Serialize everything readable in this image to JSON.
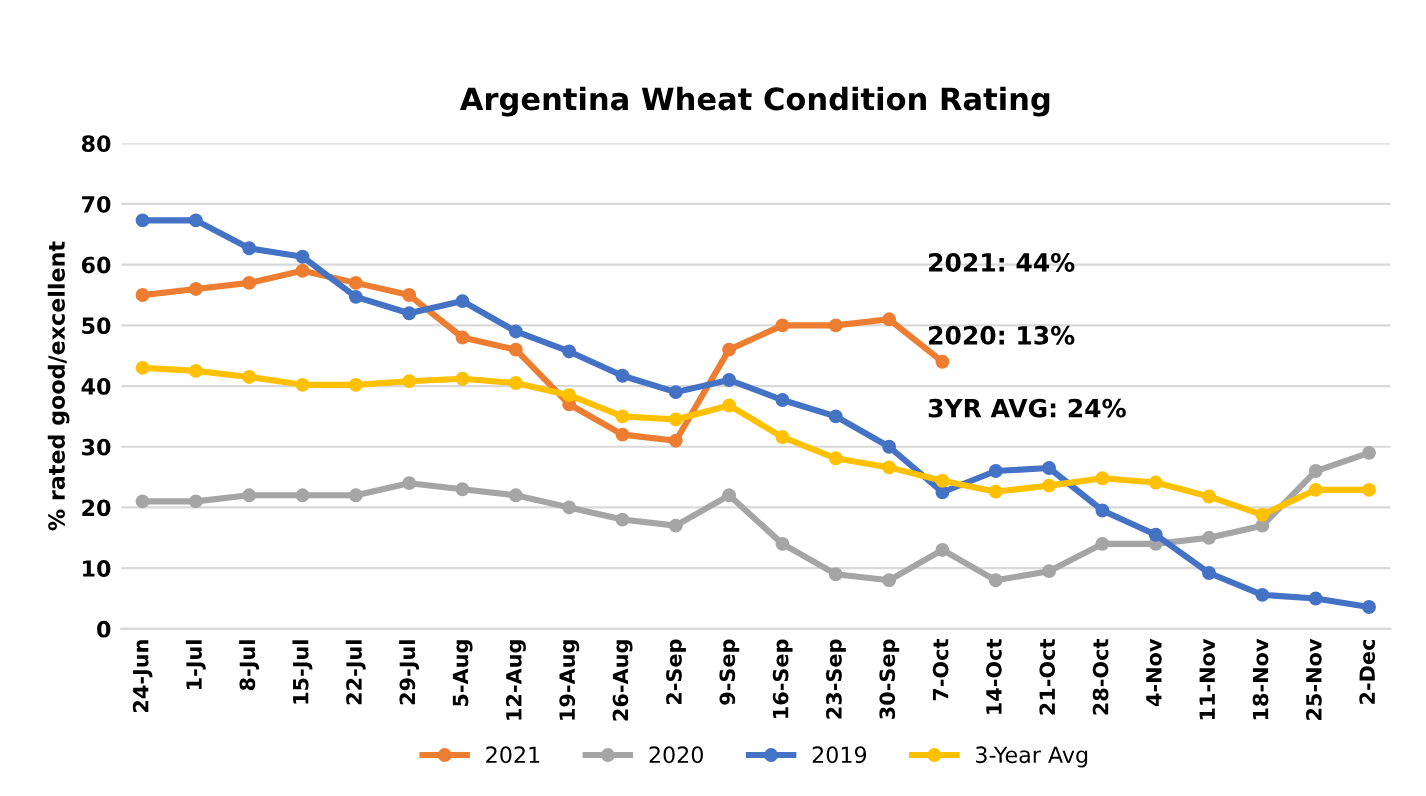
{
  "chart_data": {
    "type": "line",
    "title": "Argentina Wheat Condition Rating",
    "ylabel": "% rated good/excellent",
    "categories": [
      "24-Jun",
      "1-Jul",
      "8-Jul",
      "15-Jul",
      "22-Jul",
      "29-Jul",
      "5-Aug",
      "12-Aug",
      "19-Aug",
      "26-Aug",
      "2-Sep",
      "9-Sep",
      "16-Sep",
      "23-Sep",
      "30-Sep",
      "7-Oct",
      "14-Oct",
      "21-Oct",
      "28-Oct",
      "4-Nov",
      "11-Nov",
      "18-Nov",
      "25-Nov",
      "2-Dec"
    ],
    "series": [
      {
        "name": "2021",
        "color": "#ed7d31",
        "values": [
          55,
          56,
          57,
          59,
          57,
          55,
          48,
          46,
          37,
          32,
          31,
          46,
          50,
          50,
          51,
          44,
          null,
          null,
          null,
          null,
          null,
          null,
          null,
          null
        ]
      },
      {
        "name": "2020",
        "color": "#a5a5a5",
        "values": [
          21,
          21,
          22,
          22,
          22,
          24,
          23,
          22,
          20,
          18,
          17,
          22,
          14,
          9,
          8,
          13,
          8,
          9.5,
          14,
          14,
          15,
          17,
          26,
          29
        ]
      },
      {
        "name": "2019",
        "color": "#4472c4",
        "values": [
          67.3,
          67.3,
          62.7,
          61.3,
          54.7,
          52,
          54,
          49,
          45.7,
          41.7,
          39,
          41,
          37.7,
          35,
          30,
          22.5,
          26,
          26.5,
          19.5,
          15.5,
          9.2,
          5.6,
          5,
          3.6
        ]
      },
      {
        "name": "3-Year Avg",
        "color": "#ffc000",
        "values": [
          43,
          42.5,
          41.5,
          40.2,
          40.2,
          40.8,
          41.2,
          40.5,
          38.5,
          35,
          34.5,
          36.8,
          31.6,
          28.1,
          26.6,
          24.4,
          22.6,
          23.6,
          24.8,
          24.1,
          21.8,
          18.8,
          22.9,
          22.9
        ]
      }
    ],
    "ylim": [
      0,
      80
    ],
    "yticks": [
      0,
      10,
      20,
      30,
      40,
      50,
      60,
      70,
      80
    ],
    "grid": "y",
    "legend": "bottom",
    "marker": "circle",
    "line_style": "solid",
    "annotations": [
      "2021: 44%",
      "2020: 13%",
      "3YR AVG: 24%"
    ]
  }
}
